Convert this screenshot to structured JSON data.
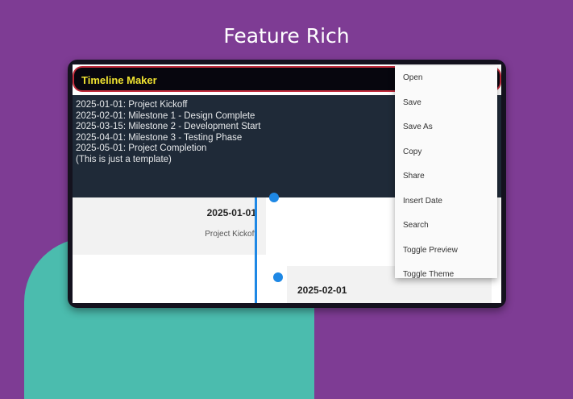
{
  "headline": "Feature Rich",
  "app": {
    "title": "Timeline Maker"
  },
  "editor": {
    "lines": [
      "2025-01-01: Project Kickoff",
      "2025-02-01: Milestone 1 - Design Complete",
      "2025-03-15: Milestone 2 - Development Start",
      "2025-04-01: Milestone 3 - Testing Phase",
      "2025-05-01: Project Completion",
      "(This is just a template)"
    ]
  },
  "timeline": [
    {
      "date": "2025-01-01",
      "title": "Project Kickoff"
    },
    {
      "date": "2025-02-01"
    }
  ],
  "menu": {
    "items": [
      "Open",
      "Save",
      "Save As",
      "Copy",
      "Share",
      "Insert Date",
      "Search",
      "Toggle Preview",
      "Toggle Theme"
    ]
  },
  "colors": {
    "background": "#7e3c94",
    "accent": "#1e88e5",
    "title": "#f1e431",
    "appbar_border": "#c02a3a"
  }
}
